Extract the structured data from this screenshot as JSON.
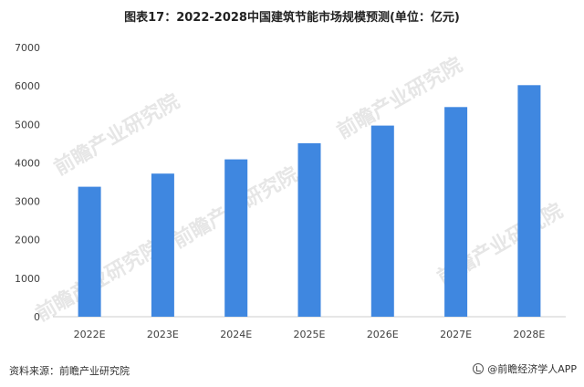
{
  "title": "图表17：2022-2028中国建筑节能市场规模预测(单位：亿元)",
  "source": "资料来源：前瞻产业研究院",
  "brand": "@前瞻经济学人APP",
  "watermark": "前瞻产业研究院",
  "colors": {
    "bar": "#3f87e0",
    "axis_text": "#404040",
    "axis_line": "#cccccc"
  },
  "chart_data": {
    "type": "bar",
    "title": "图表17：2022-2028中国建筑节能市场规模预测(单位：亿元)",
    "categories": [
      "2022E",
      "2023E",
      "2024E",
      "2025E",
      "2026E",
      "2027E",
      "2028E"
    ],
    "values": [
      3380,
      3720,
      4090,
      4510,
      4970,
      5450,
      6020
    ],
    "xlabel": "",
    "ylabel": "",
    "ylim": [
      0,
      7000
    ],
    "yticks": [
      0,
      1000,
      2000,
      3000,
      4000,
      5000,
      6000,
      7000
    ],
    "grid": false,
    "legend": "none"
  }
}
